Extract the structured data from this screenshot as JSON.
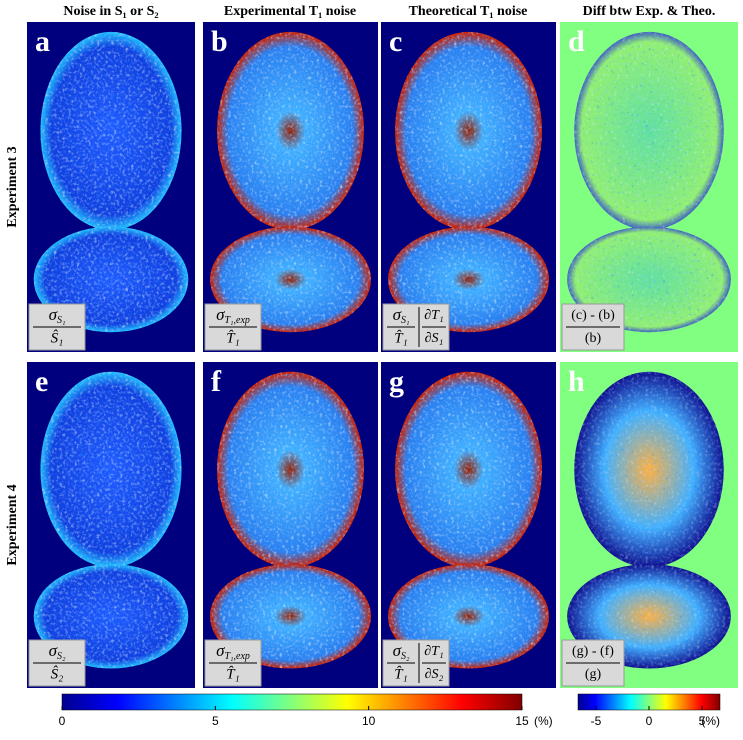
{
  "column_headers": [
    "Noise in S₁ or S₂",
    "Experimental T₁ noise",
    "Theoretical T₁ noise",
    "Diff btw Exp. & Theo."
  ],
  "row_labels": [
    "Experiment 3",
    "Experiment 4"
  ],
  "panels": [
    {
      "letter": "a",
      "formula": {
        "num": "σ",
        "num_sub": "S₁",
        "den": "Ŝ₁"
      }
    },
    {
      "letter": "b",
      "formula": {
        "num": "σ",
        "num_sub": "T₁,exp",
        "den": "T̂₁"
      }
    },
    {
      "letter": "c",
      "formula": {
        "num": "σ",
        "num_sub": "S₁",
        "den": "T̂₁",
        "deriv_num": "∂T₁",
        "deriv_den": "∂S₁"
      }
    },
    {
      "letter": "d",
      "formula": {
        "num": "(c) - (b)",
        "den": "(b)"
      }
    },
    {
      "letter": "e",
      "formula": {
        "num": "σ",
        "num_sub": "S₂",
        "den": "Ŝ₂"
      }
    },
    {
      "letter": "f",
      "formula": {
        "num": "σ",
        "num_sub": "T₁,exp",
        "den": "T̂₁"
      }
    },
    {
      "letter": "g",
      "formula": {
        "num": "σ",
        "num_sub": "S₂",
        "den": "T̂₁",
        "deriv_num": "∂T₁",
        "deriv_den": "∂S₂"
      }
    },
    {
      "letter": "h",
      "formula": {
        "num": "(g) - (f)",
        "den": "(g)"
      }
    }
  ],
  "colorbars": [
    {
      "range": [
        0,
        15
      ],
      "ticks": [
        0,
        5,
        10,
        15
      ],
      "unit": "(%)"
    },
    {
      "range": [
        -6.7,
        6.7
      ],
      "ticks": [
        -5,
        0,
        5
      ],
      "unit": "(%)"
    }
  ]
}
